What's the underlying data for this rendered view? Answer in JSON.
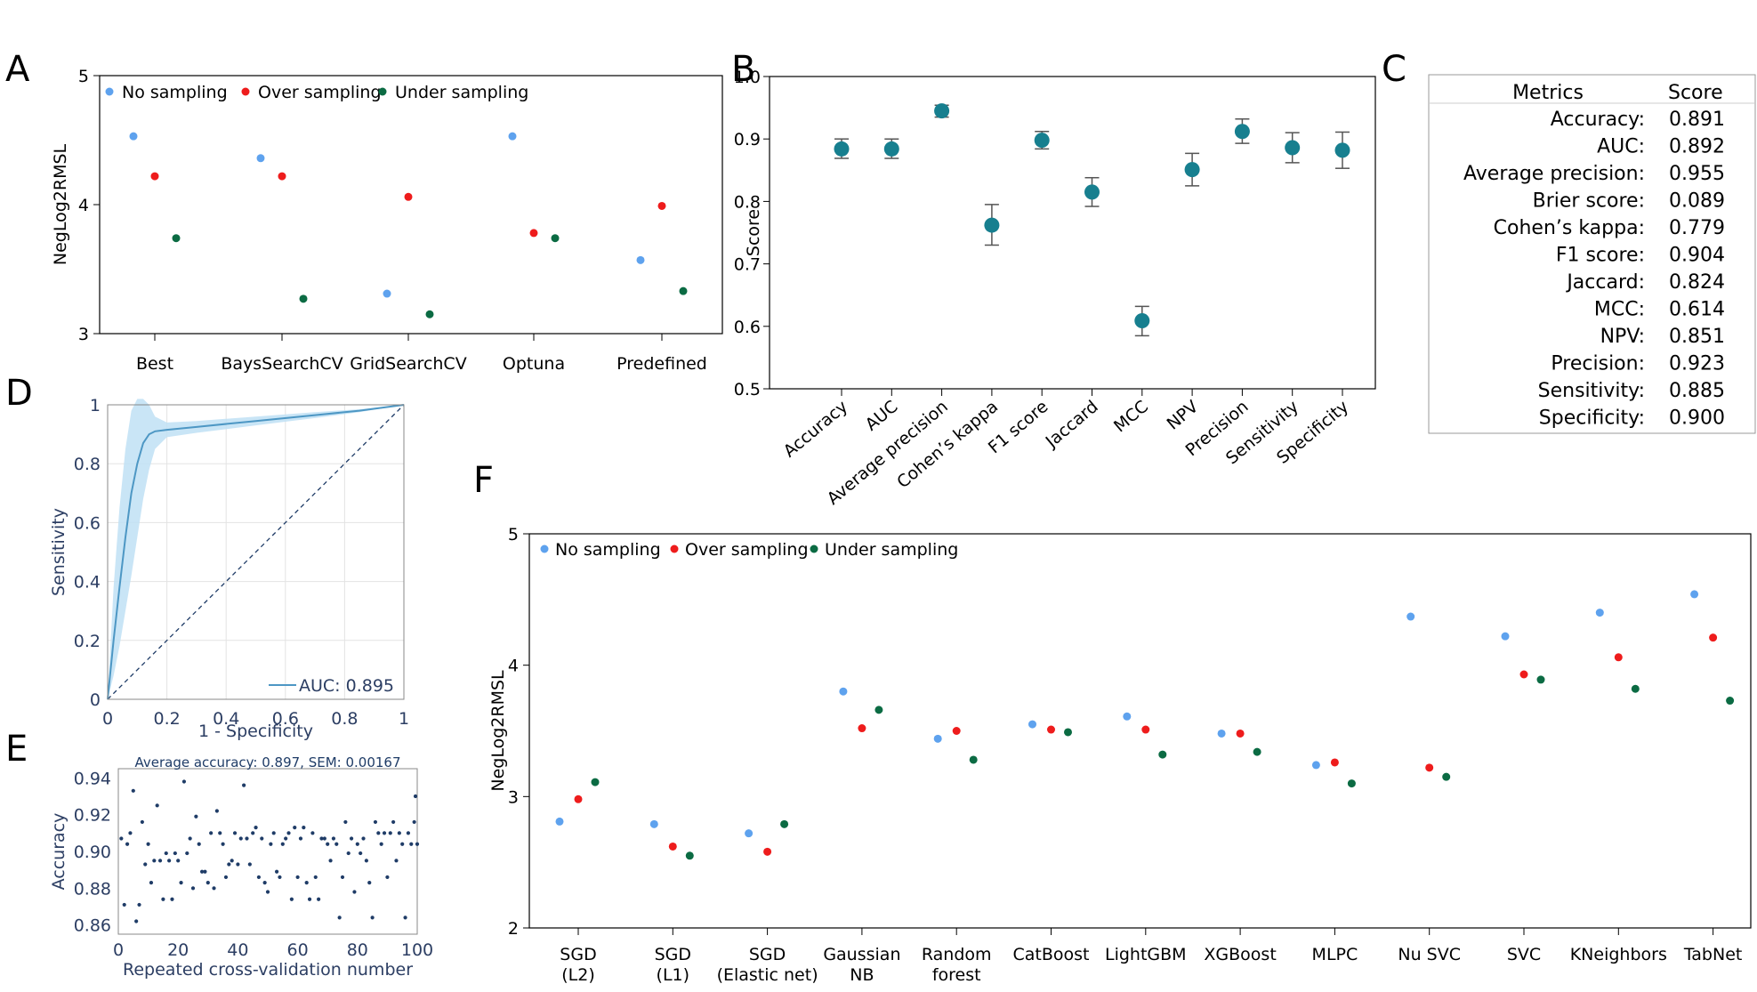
{
  "panels": {
    "A": "A",
    "B": "B",
    "C": "C",
    "D": "D",
    "E": "E",
    "F": "F"
  },
  "colors": {
    "no_sampling": "#5ea2ee",
    "over_sampling": "#ee1c1c",
    "under_sampling": "#0b6b43",
    "score_dot": "#177f8f",
    "roc_line": "#4d97c4",
    "roc_band": "#bfe0f5",
    "dark_navy": "#1f3c67"
  },
  "chart_data": [
    {
      "id": "A",
      "type": "scatter",
      "ylabel": "NegLog2RMSL",
      "ylim": [
        3,
        5
      ],
      "yticks": [
        "3",
        "4",
        "5"
      ],
      "categories": [
        "Best",
        "BaysSearchCV",
        "GridSearchCV",
        "Optuna",
        "Predefined"
      ],
      "legend_position": "top-left",
      "series": [
        {
          "name": "No sampling",
          "color": "#5ea2ee",
          "values": [
            4.53,
            4.36,
            3.31,
            4.53,
            3.57
          ]
        },
        {
          "name": "Over sampling",
          "color": "#ee1c1c",
          "values": [
            4.22,
            4.22,
            4.06,
            3.78,
            3.99
          ]
        },
        {
          "name": "Under sampling",
          "color": "#0b6b43",
          "values": [
            3.74,
            3.27,
            3.15,
            3.74,
            3.33
          ]
        }
      ]
    },
    {
      "id": "B",
      "type": "scatter",
      "ylabel": "Score",
      "ylim": [
        0.5,
        1.0
      ],
      "yticks": [
        "0.5",
        "0.6",
        "0.7",
        "0.8",
        "0.9",
        "1.0"
      ],
      "categories": [
        "Accuracy",
        "AUC",
        "Average precision",
        "Cohen’s kappa",
        "F1 score",
        "Jaccard",
        "MCC",
        "NPV",
        "Precision",
        "Sensitivity",
        "Specificity"
      ],
      "values": [
        0.884,
        0.884,
        0.945,
        0.762,
        0.898,
        0.815,
        0.609,
        0.851,
        0.912,
        0.886,
        0.882
      ],
      "err_low": [
        0.869,
        0.869,
        0.935,
        0.73,
        0.884,
        0.792,
        0.585,
        0.825,
        0.893,
        0.862,
        0.853
      ],
      "err_high": [
        0.9,
        0.9,
        0.954,
        0.795,
        0.912,
        0.838,
        0.632,
        0.877,
        0.932,
        0.91,
        0.911
      ]
    },
    {
      "id": "C",
      "type": "table",
      "columns": [
        "Metrics",
        "Score"
      ],
      "rows": [
        {
          "metric": "Accuracy:",
          "score": "0.891"
        },
        {
          "metric": "AUC:",
          "score": "0.892"
        },
        {
          "metric": "Average precision:",
          "score": "0.955"
        },
        {
          "metric": "Brier score:",
          "score": "0.089"
        },
        {
          "metric": "Cohen’s kappa:",
          "score": "0.779"
        },
        {
          "metric": "F1 score:",
          "score": "0.904"
        },
        {
          "metric": "Jaccard:",
          "score": "0.824"
        },
        {
          "metric": "MCC:",
          "score": "0.614"
        },
        {
          "metric": "NPV:",
          "score": "0.851"
        },
        {
          "metric": "Precision:",
          "score": "0.923"
        },
        {
          "metric": "Sensitivity:",
          "score": "0.885"
        },
        {
          "metric": "Specificity:",
          "score": "0.900"
        }
      ]
    },
    {
      "id": "D",
      "type": "line",
      "xlabel": "1 - Specificity",
      "ylabel": "Sensitivity",
      "xlim": [
        0,
        1
      ],
      "ylim": [
        0,
        1
      ],
      "xticks": [
        "0",
        "0.2",
        "0.4",
        "0.6",
        "0.8",
        "1"
      ],
      "yticks": [
        "0",
        "0.2",
        "0.4",
        "0.6",
        "0.8",
        "1"
      ],
      "grid": true,
      "legend": "AUC: 0.895",
      "legend_position": "bottom-right",
      "x": [
        0,
        0.02,
        0.04,
        0.06,
        0.08,
        0.1,
        0.12,
        0.14,
        0.16,
        0.2,
        0.3,
        0.5,
        0.7,
        0.85,
        1.0
      ],
      "y": [
        0,
        0.2,
        0.38,
        0.55,
        0.7,
        0.8,
        0.87,
        0.9,
        0.91,
        0.915,
        0.925,
        0.945,
        0.965,
        0.98,
        1.0
      ],
      "y_low": [
        0,
        0.08,
        0.18,
        0.3,
        0.42,
        0.55,
        0.68,
        0.78,
        0.85,
        0.89,
        0.905,
        0.93,
        0.955,
        0.975,
        1.0
      ],
      "y_high": [
        0,
        0.38,
        0.65,
        0.85,
        0.98,
        1.02,
        1.02,
        1.0,
        0.96,
        0.94,
        0.945,
        0.96,
        0.975,
        0.985,
        1.0
      ],
      "diagonal": [
        [
          0,
          0
        ],
        [
          1,
          1
        ]
      ]
    },
    {
      "id": "E",
      "type": "scatter",
      "title": "Average accuracy: 0.897, SEM: 0.00167",
      "xlabel": "Repeated cross-validation number",
      "ylabel": "Accuracy",
      "xlim": [
        0,
        100
      ],
      "ylim": [
        0.855,
        0.945
      ],
      "xticks": [
        "0",
        "20",
        "40",
        "60",
        "80",
        "100"
      ],
      "yticks": [
        "0.86",
        "0.88",
        "0.90",
        "0.92",
        "0.94"
      ],
      "x": [
        1,
        2,
        3,
        4,
        5,
        6,
        7,
        8,
        9,
        10,
        11,
        12,
        13,
        14,
        15,
        16,
        17,
        18,
        19,
        20,
        21,
        22,
        23,
        24,
        25,
        26,
        27,
        28,
        29,
        30,
        31,
        32,
        33,
        34,
        35,
        36,
        37,
        38,
        39,
        40,
        41,
        42,
        43,
        44,
        45,
        46,
        47,
        48,
        49,
        50,
        51,
        52,
        53,
        54,
        55,
        56,
        57,
        58,
        59,
        60,
        61,
        62,
        63,
        64,
        65,
        66,
        67,
        68,
        69,
        70,
        71,
        72,
        73,
        74,
        75,
        76,
        77,
        78,
        79,
        80,
        81,
        82,
        83,
        84,
        85,
        86,
        87,
        88,
        89,
        90,
        91,
        92,
        93,
        94,
        95,
        96,
        97,
        98,
        99,
        100
      ],
      "y": [
        0.907,
        0.871,
        0.904,
        0.91,
        0.933,
        0.862,
        0.871,
        0.916,
        0.893,
        0.904,
        0.883,
        0.895,
        0.925,
        0.895,
        0.874,
        0.899,
        0.895,
        0.874,
        0.899,
        0.895,
        0.883,
        0.938,
        0.899,
        0.907,
        0.88,
        0.919,
        0.904,
        0.889,
        0.889,
        0.883,
        0.91,
        0.88,
        0.922,
        0.91,
        0.904,
        0.886,
        0.893,
        0.895,
        0.91,
        0.893,
        0.907,
        0.936,
        0.907,
        0.893,
        0.91,
        0.913,
        0.886,
        0.907,
        0.883,
        0.878,
        0.904,
        0.91,
        0.889,
        0.886,
        0.904,
        0.907,
        0.91,
        0.874,
        0.913,
        0.886,
        0.907,
        0.913,
        0.883,
        0.874,
        0.91,
        0.886,
        0.874,
        0.907,
        0.907,
        0.904,
        0.895,
        0.907,
        0.904,
        0.864,
        0.886,
        0.916,
        0.899,
        0.907,
        0.878,
        0.904,
        0.899,
        0.907,
        0.895,
        0.883,
        0.864,
        0.916,
        0.91,
        0.904,
        0.91,
        0.886,
        0.91,
        0.916,
        0.895,
        0.91,
        0.904,
        0.864,
        0.91,
        0.904,
        0.916,
        0.904
      ],
      "x_extra": [
        100
      ],
      "y_extra": [
        0.93
      ]
    },
    {
      "id": "F",
      "type": "scatter",
      "ylabel": "NegLog2RMSL",
      "ylim": [
        2,
        5
      ],
      "yticks": [
        "2",
        "3",
        "4",
        "5"
      ],
      "categories": [
        "SGD\n(L2)",
        "SGD\n(L1)",
        "SGD\n(Elastic net)",
        "Gaussian\nNB",
        "Random\nforest",
        "CatBoost",
        "LightGBM",
        "XGBoost",
        "MLPC",
        "Nu SVC",
        "SVC",
        "KNeighbors",
        "TabNet"
      ],
      "legend_position": "top-left",
      "series": [
        {
          "name": "No sampling",
          "color": "#5ea2ee",
          "values": [
            2.81,
            2.79,
            2.72,
            3.8,
            3.44,
            3.55,
            3.61,
            3.48,
            3.24,
            4.37,
            4.22,
            4.4,
            4.54
          ]
        },
        {
          "name": "Over sampling",
          "color": "#ee1c1c",
          "values": [
            2.98,
            2.62,
            2.58,
            3.52,
            3.5,
            3.51,
            3.51,
            3.48,
            3.26,
            3.22,
            3.93,
            4.06,
            4.21
          ]
        },
        {
          "name": "Under sampling",
          "color": "#0b6b43",
          "values": [
            3.11,
            2.55,
            2.79,
            3.66,
            3.28,
            3.49,
            3.32,
            3.34,
            3.1,
            3.15,
            3.89,
            3.82,
            3.73
          ]
        }
      ]
    }
  ]
}
